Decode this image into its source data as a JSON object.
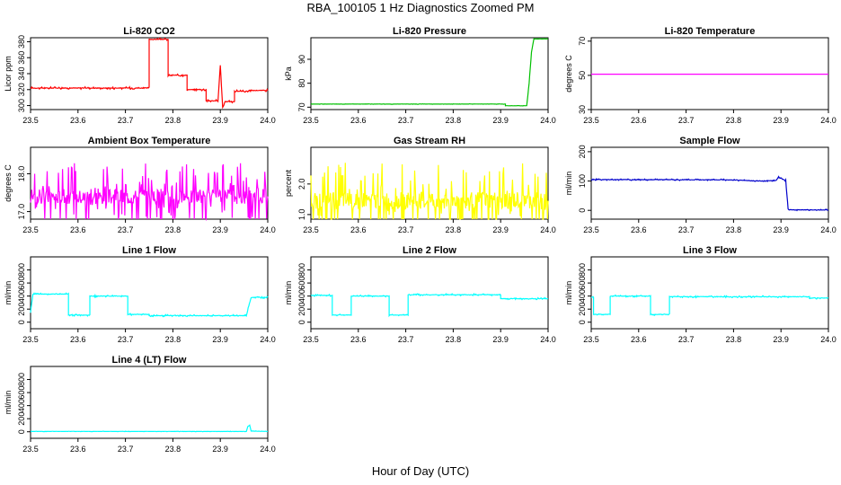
{
  "figure": {
    "title": "RBA_100105  1 Hz Diagnostics Zoomed PM",
    "xlabel": "Hour of Day (UTC)"
  },
  "chart_data": [
    {
      "type": "line",
      "title": "Li-820 CO2",
      "ylabel": "Licor ppm",
      "color": "#ff0000",
      "xlim": [
        23.5,
        24.0
      ],
      "ylim": [
        295,
        385
      ],
      "xticks": [
        "23.5",
        "23.6",
        "23.7",
        "23.8",
        "23.9",
        "24.0"
      ],
      "yticks": [
        "300",
        "320",
        "340",
        "360",
        "380"
      ],
      "x": [
        23.5,
        23.75,
        23.75,
        23.79,
        23.79,
        23.83,
        23.83,
        23.87,
        23.87,
        23.895,
        23.9,
        23.905,
        23.91,
        23.93,
        23.93,
        23.96,
        23.96,
        24.0
      ],
      "y": [
        322,
        322,
        383,
        383,
        338,
        338,
        320,
        320,
        306,
        306,
        350,
        297,
        305,
        305,
        318,
        318,
        319,
        319
      ],
      "noise": 0.8
    },
    {
      "type": "line",
      "title": "Li-820 Pressure",
      "ylabel": "kPa",
      "color": "#00c000",
      "xlim": [
        23.5,
        24.0
      ],
      "ylim": [
        69,
        99
      ],
      "xticks": [
        "23.5",
        "23.6",
        "23.7",
        "23.8",
        "23.9",
        "24.0"
      ],
      "yticks": [
        "70",
        "80",
        "90"
      ],
      "x": [
        23.5,
        23.91,
        23.91,
        23.955,
        23.96,
        23.965,
        23.97,
        24.0
      ],
      "y": [
        71.3,
        71.3,
        70.6,
        70.6,
        80,
        93,
        98.5,
        98.5
      ],
      "noise": 0.05
    },
    {
      "type": "line",
      "title": "Li-820 Temperature",
      "ylabel": "degrees C",
      "color": "#ff00ff",
      "xlim": [
        23.5,
        24.0
      ],
      "ylim": [
        30,
        72
      ],
      "xticks": [
        "23.5",
        "23.6",
        "23.7",
        "23.8",
        "23.9",
        "24.0"
      ],
      "yticks": [
        "30",
        "50",
        "70"
      ],
      "x": [
        23.5,
        24.0
      ],
      "y": [
        50.7,
        50.7
      ],
      "noise": 0
    },
    {
      "type": "line",
      "title": "Ambient Box Temperature",
      "ylabel": "degrees C",
      "color": "#ff00ff",
      "xlim": [
        23.5,
        24.0
      ],
      "ylim": [
        16.8,
        18.7
      ],
      "xticks": [
        "23.5",
        "23.6",
        "23.7",
        "23.8",
        "23.9",
        "24.0"
      ],
      "yticks": [
        "17.0",
        "18.0"
      ],
      "x": [
        23.5,
        24.0
      ],
      "y": [
        17.4,
        17.4
      ],
      "noise": 0.5
    },
    {
      "type": "line",
      "title": "Gas Stream RH",
      "ylabel": "percent",
      "color": "#ffff00",
      "xlim": [
        23.5,
        24.0
      ],
      "ylim": [
        0.85,
        3.2
      ],
      "xticks": [
        "23.5",
        "23.6",
        "23.7",
        "23.8",
        "23.9",
        "24.0"
      ],
      "yticks": [
        "1.0",
        "2.0"
      ],
      "x": [
        23.5,
        24.0
      ],
      "y": [
        1.45,
        1.45
      ],
      "noise": 0.7
    },
    {
      "type": "line",
      "title": "Sample Flow",
      "ylabel": "ml/min",
      "color": "#0000cc",
      "xlim": [
        23.5,
        24.0
      ],
      "ylim": [
        -30,
        215
      ],
      "xticks": [
        "23.5",
        "23.6",
        "23.7",
        "23.8",
        "23.9",
        "24.0"
      ],
      "yticks": [
        "0",
        "100",
        "200"
      ],
      "x": [
        23.5,
        23.8,
        23.85,
        23.89,
        23.895,
        23.9,
        23.91,
        23.915,
        23.92,
        24.0
      ],
      "y": [
        105,
        104,
        100,
        102,
        115,
        108,
        102,
        5,
        2,
        1
      ],
      "noise": 1.5
    },
    {
      "type": "line",
      "title": "Line 1 Flow",
      "ylabel": "ml/min",
      "color": "#00ffff",
      "xlim": [
        23.5,
        24.0
      ],
      "ylim": [
        -100,
        1000
      ],
      "xticks": [
        "23.5",
        "23.6",
        "23.7",
        "23.8",
        "23.9",
        "24.0"
      ],
      "yticks": [
        "0",
        "200",
        "400",
        "600",
        "800"
      ],
      "x": [
        23.5,
        23.505,
        23.51,
        23.58,
        23.58,
        23.625,
        23.625,
        23.705,
        23.705,
        23.75,
        23.75,
        23.955,
        23.96,
        23.965,
        24.0
      ],
      "y": [
        150,
        430,
        430,
        430,
        110,
        110,
        400,
        400,
        120,
        120,
        100,
        100,
        250,
        380,
        380
      ],
      "noise": 8
    },
    {
      "type": "line",
      "title": "Line 2 Flow",
      "ylabel": "ml/min",
      "color": "#00ffff",
      "xlim": [
        23.5,
        24.0
      ],
      "ylim": [
        -100,
        1000
      ],
      "xticks": [
        "23.5",
        "23.6",
        "23.7",
        "23.8",
        "23.9",
        "24.0"
      ],
      "yticks": [
        "0",
        "200",
        "400",
        "600",
        "800"
      ],
      "x": [
        23.5,
        23.545,
        23.545,
        23.585,
        23.585,
        23.665,
        23.665,
        23.705,
        23.705,
        23.9,
        23.9,
        23.96,
        23.96,
        24.0
      ],
      "y": [
        410,
        410,
        110,
        110,
        400,
        400,
        110,
        110,
        420,
        420,
        360,
        360,
        360,
        360
      ],
      "noise": 8
    },
    {
      "type": "line",
      "title": "Line 3 Flow",
      "ylabel": "ml/min",
      "color": "#00ffff",
      "xlim": [
        23.5,
        24.0
      ],
      "ylim": [
        -100,
        1000
      ],
      "xticks": [
        "23.5",
        "23.6",
        "23.7",
        "23.8",
        "23.9",
        "24.0"
      ],
      "yticks": [
        "0",
        "200",
        "400",
        "600",
        "800"
      ],
      "x": [
        23.5,
        23.505,
        23.505,
        23.54,
        23.54,
        23.625,
        23.625,
        23.665,
        23.665,
        23.96,
        23.96,
        24.0
      ],
      "y": [
        380,
        380,
        120,
        120,
        400,
        400,
        120,
        120,
        390,
        390,
        370,
        370
      ],
      "noise": 8
    },
    {
      "type": "line",
      "title": "Line 4 (LT) Flow",
      "ylabel": "ml/min",
      "color": "#00ffff",
      "xlim": [
        23.5,
        24.0
      ],
      "ylim": [
        -100,
        1000
      ],
      "xticks": [
        "23.5",
        "23.6",
        "23.7",
        "23.8",
        "23.9",
        "24.0"
      ],
      "yticks": [
        "0",
        "200",
        "400",
        "600",
        "800"
      ],
      "x": [
        23.5,
        23.955,
        23.958,
        23.962,
        23.965,
        24.0
      ],
      "y": [
        5,
        5,
        80,
        100,
        10,
        5
      ],
      "noise": 2
    }
  ]
}
